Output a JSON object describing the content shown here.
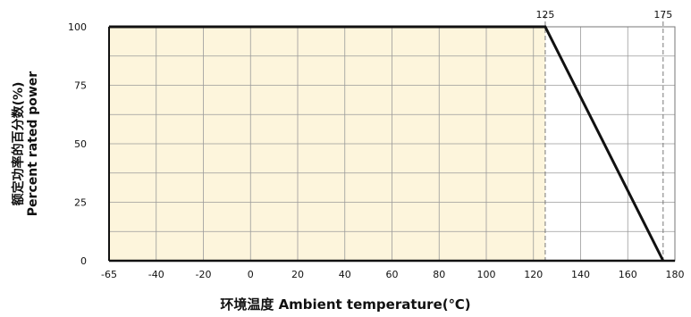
{
  "chart_data": {
    "type": "line",
    "title": "",
    "ylabel_zh": "额定功率的百分数(%)",
    "ylabel_en": "Percent rated power",
    "xlabel": "环境温度  Ambient temperature(℃)",
    "x_ticks": [
      "-65",
      "-40",
      "-20",
      "0",
      "20",
      "40",
      "60",
      "80",
      "100",
      "120",
      "140",
      "160",
      "180"
    ],
    "y_ticks": [
      "0",
      "25",
      "50",
      "75",
      "100"
    ],
    "top_markers": [
      "125",
      "175"
    ],
    "series": [
      {
        "x": [
          -65,
          125,
          175
        ],
        "y": [
          100,
          100,
          0
        ]
      }
    ],
    "xlim": [
      -65,
      180
    ],
    "ylim": [
      0,
      100
    ],
    "grid": true,
    "fill_color": "#fdf5dc",
    "line_color": "#111111"
  }
}
